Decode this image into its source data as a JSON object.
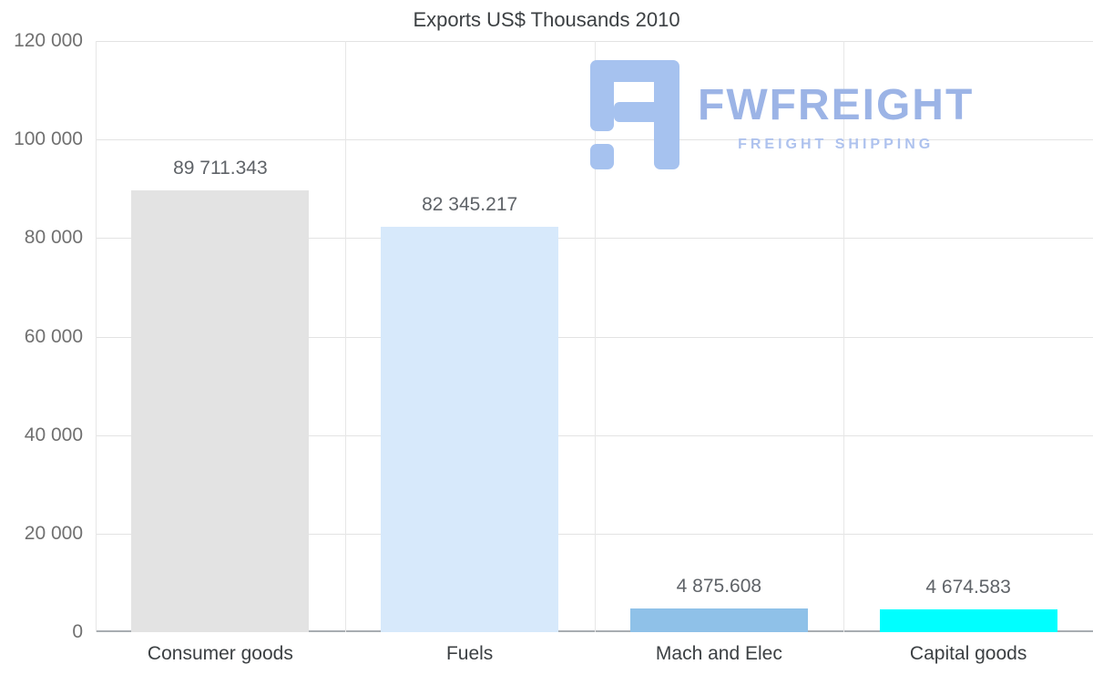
{
  "title": "Exports US$ Thousands 2010",
  "watermark": {
    "brand": "FWFREIGHT",
    "tagline": "FREIGHT SHIPPING",
    "color": "#a6c2ef"
  },
  "chart_data": {
    "type": "bar",
    "title": "Exports US$ Thousands 2010",
    "categories": [
      "Consumer goods",
      "Fuels",
      "Mach and Elec",
      "Capital goods"
    ],
    "values": [
      89711.343,
      82345.217,
      4875.608,
      4674.583
    ],
    "value_labels": [
      "89 711.343",
      "82 345.217",
      "4 875.608",
      "4 674.583"
    ],
    "bar_colors": [
      "#e3e3e3",
      "#d7e9fb",
      "#8fc1e8",
      "#00ffff"
    ],
    "xlabel": "",
    "ylabel": "",
    "ylim": [
      0,
      120000
    ],
    "ytick_step": 20000,
    "ytick_labels": [
      "0",
      "20 000",
      "40 000",
      "60 000",
      "80 000",
      "100 000",
      "120 000"
    ],
    "grid": true,
    "legend": "none"
  }
}
